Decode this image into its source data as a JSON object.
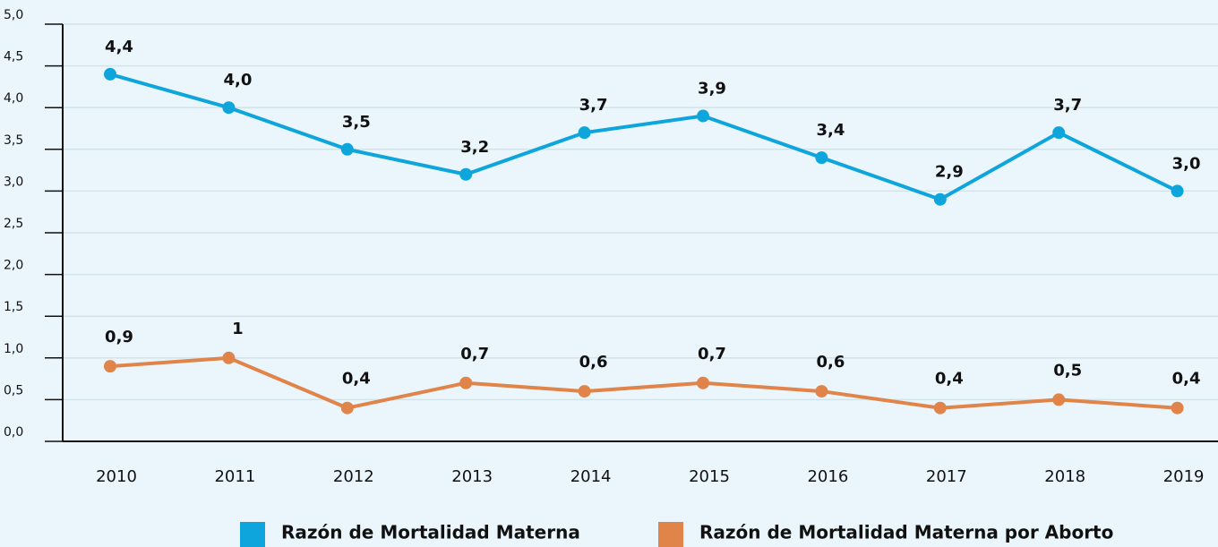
{
  "chart_data": {
    "type": "line",
    "categories": [
      "2010",
      "2011",
      "2012",
      "2013",
      "2014",
      "2015",
      "2016",
      "2017",
      "2018",
      "2019"
    ],
    "series": [
      {
        "name": "Razón de Mortalidad Materna",
        "color": "#0ea5dc",
        "values": [
          4.4,
          4.0,
          3.5,
          3.2,
          3.7,
          3.9,
          3.4,
          2.9,
          3.7,
          3.0
        ],
        "value_labels": [
          "4,4",
          "4,0",
          "3,5",
          "3,2",
          "3,7",
          "3,9",
          "3,4",
          "2,9",
          "3,7",
          "3,0"
        ]
      },
      {
        "name": "Razón de Mortalidad Materna por Aborto",
        "color": "#e0844a",
        "values": [
          0.9,
          1,
          0.4,
          0.7,
          0.6,
          0.7,
          0.6,
          0.4,
          0.5,
          0.4
        ],
        "value_labels": [
          "0,9",
          "1",
          "0,4",
          "0,7",
          "0,6",
          "0,7",
          "0,6",
          "0,4",
          "0,5",
          "0,4"
        ]
      }
    ],
    "ylim": [
      0,
      5
    ],
    "yticks": [
      {
        "value": 0,
        "label": "0,0"
      },
      {
        "value": 0.5,
        "label": "0,5"
      },
      {
        "value": 1,
        "label": "1,0"
      },
      {
        "value": 1.5,
        "label": "1,5"
      },
      {
        "value": 2,
        "label": "2,0"
      },
      {
        "value": 2.5,
        "label": "2,5"
      },
      {
        "value": 3,
        "label": "3,0"
      },
      {
        "value": 3.5,
        "label": "3,5"
      },
      {
        "value": 4,
        "label": "4,0"
      },
      {
        "value": 4.5,
        "label": "4,5"
      },
      {
        "value": 5,
        "label": "5,0"
      }
    ],
    "grid": true,
    "legend": "bottom"
  }
}
